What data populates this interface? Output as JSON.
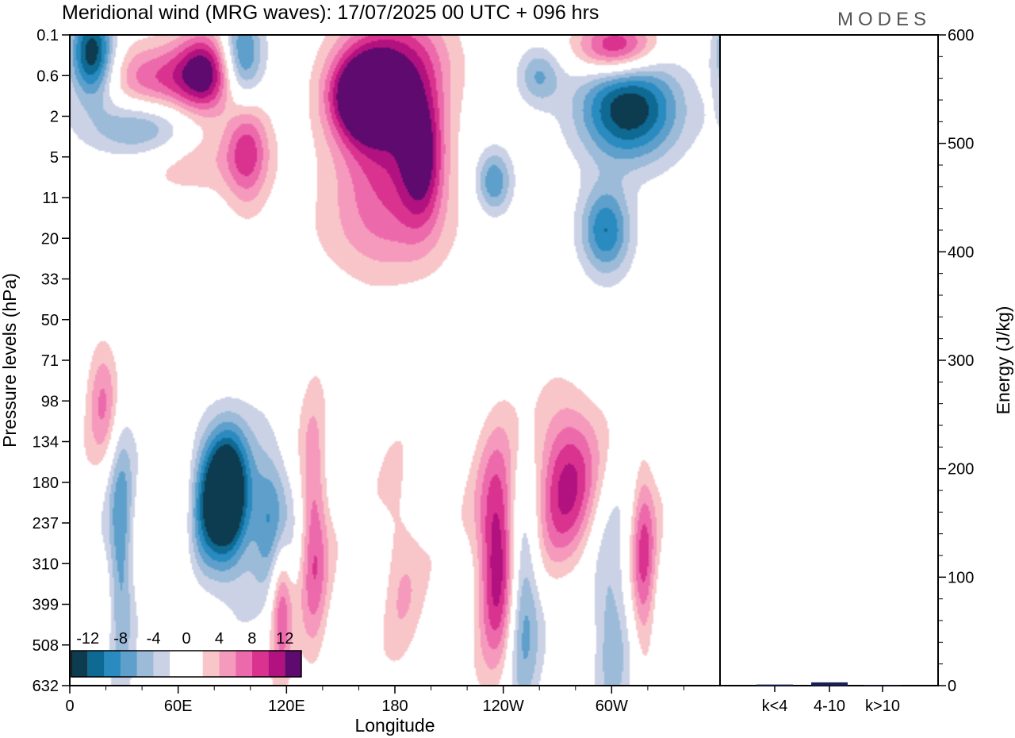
{
  "title": "Meridional wind (MRG waves):  17/07/2025  00 UTC  + 096 hrs",
  "logo": "MODES",
  "chart_data": [
    {
      "type": "heatmap",
      "xlabel": "Longitude",
      "ylabel": "Pressure levels (hPa)",
      "x_tick_labels": [
        "0",
        "60E",
        "120E",
        "180",
        "120W",
        "60W"
      ],
      "y_tick_labels": [
        "0.1",
        "0.6",
        "2",
        "5",
        "11",
        "20",
        "33",
        "50",
        "71",
        "98",
        "134",
        "180",
        "237",
        "310",
        "399",
        "508",
        "632"
      ],
      "colorbar": {
        "labels": [
          "-12",
          "-8",
          "-4",
          "0",
          "4",
          "8",
          "12"
        ],
        "levels": [
          -14,
          -12,
          -10,
          -8,
          -6,
          -4,
          -2,
          0,
          2,
          4,
          6,
          8,
          10,
          12,
          14
        ],
        "colors": [
          "#0d3b4f",
          "#0f6a93",
          "#2a8bc0",
          "#5e9fcb",
          "#9cbbd9",
          "#cbd2e6",
          "#ffffff",
          "#ffffff",
          "#f8c6c9",
          "#f59abc",
          "#ec6aab",
          "#d9338f",
          "#b2127f",
          "#5e0a6e"
        ]
      },
      "features": [
        {
          "lon": 12,
          "level": 0.45,
          "value": -14,
          "w": 12,
          "h": 1.1
        },
        {
          "lon": 40,
          "level": 2.3,
          "value": -8,
          "w": 30,
          "h": 0.8
        },
        {
          "lon": 48,
          "level": 1.1,
          "value": 8,
          "w": 28,
          "h": 0.9
        },
        {
          "lon": 75,
          "level": 0.9,
          "value": 12,
          "w": 16,
          "h": 1.0
        },
        {
          "lon": 98,
          "level": 2.8,
          "value": 8,
          "w": 12,
          "h": 1.4
        },
        {
          "lon": 95,
          "level": 0.55,
          "value": -10,
          "w": 12,
          "h": 1.2
        },
        {
          "lon": 162,
          "level": 1.5,
          "value": 14,
          "w": 18,
          "h": 1.0
        },
        {
          "lon": 175,
          "level": 2.2,
          "value": 10,
          "w": 28,
          "h": 2.2
        },
        {
          "lon": 183,
          "level": 0.6,
          "value": 6,
          "w": 30,
          "h": 1.3
        },
        {
          "lon": 195,
          "level": 3.0,
          "value": 10,
          "w": 12,
          "h": 1.6
        },
        {
          "lon": 310,
          "level": 1.8,
          "value": -14,
          "w": 28,
          "h": 1.3
        },
        {
          "lon": 297,
          "level": 4.8,
          "value": -10,
          "w": 14,
          "h": 1.1
        },
        {
          "lon": 303,
          "level": 0.3,
          "value": 12,
          "w": 22,
          "h": 0.7
        },
        {
          "lon": 235,
          "level": 3.6,
          "value": -8,
          "w": 10,
          "h": 0.8
        },
        {
          "lon": 260,
          "level": 1.0,
          "value": -6,
          "w": 12,
          "h": 0.7
        },
        {
          "lon": 18,
          "level": 9.0,
          "value": 6,
          "w": 9,
          "h": 1.5
        },
        {
          "lon": 28,
          "level": 12.7,
          "value": -8,
          "w": 7,
          "h": 3.0
        },
        {
          "lon": 62,
          "level": 12.0,
          "value": 6,
          "w": 9,
          "h": 2.0
        },
        {
          "lon": 80,
          "level": 11.6,
          "value": -10,
          "w": 22,
          "h": 2.0
        },
        {
          "lon": 87,
          "level": 11.3,
          "value": -12,
          "w": 11,
          "h": 1.5
        },
        {
          "lon": 112,
          "level": 11.8,
          "value": -8,
          "w": 11,
          "h": 1.6
        },
        {
          "lon": 117,
          "level": 14.0,
          "value": 8,
          "w": 6,
          "h": 1.8
        },
        {
          "lon": 135,
          "level": 12.2,
          "value": 8,
          "w": 8,
          "h": 3.0
        },
        {
          "lon": 183,
          "level": 12.9,
          "value": 4,
          "w": 12,
          "h": 2.5
        },
        {
          "lon": 238,
          "level": 12.8,
          "value": 14,
          "w": 12,
          "h": 2.6
        },
        {
          "lon": 250,
          "level": 13.8,
          "value": -10,
          "w": 10,
          "h": 2.6
        },
        {
          "lon": 275,
          "level": 11.0,
          "value": 10,
          "w": 18,
          "h": 2.1
        },
        {
          "lon": 300,
          "level": 14.5,
          "value": -6,
          "w": 11,
          "h": 2.5
        },
        {
          "lon": 318,
          "level": 12.9,
          "value": 8,
          "w": 7,
          "h": 2.5
        },
        {
          "lon": 175,
          "level": 4.8,
          "value": 4,
          "w": 40,
          "h": 1.4
        },
        {
          "lon": 65,
          "level": 3.0,
          "value": 4,
          "w": 40,
          "h": 0.9
        }
      ]
    },
    {
      "type": "bar",
      "ylabel": "Energy (J/kg)",
      "categories": [
        "k<4",
        "4-10",
        "k>10"
      ],
      "values": [
        1,
        3,
        0.5
      ],
      "ylim": [
        0,
        600
      ],
      "y_tick_labels": [
        "0",
        "100",
        "200",
        "300",
        "400",
        "500",
        "600"
      ],
      "color": "#1a1f5c"
    }
  ]
}
